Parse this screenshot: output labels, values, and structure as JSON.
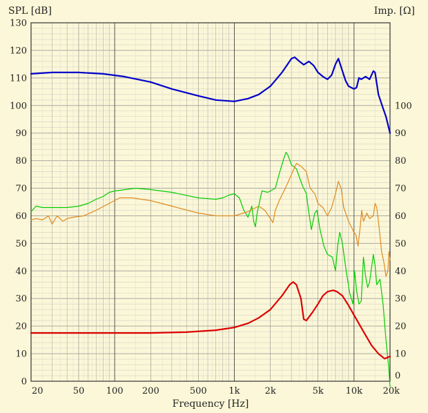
{
  "chart_data": {
    "type": "line",
    "xlabel": "Frequency [Hz]",
    "ylabel_left": "SPL [dB]",
    "ylabel_right": "Imp. [Ω]",
    "x_scale": "log",
    "xlim": [
      20,
      20000
    ],
    "ylim_left": [
      0,
      130
    ],
    "ylim_right": [
      0,
      130
    ],
    "grid": true,
    "x_ticks": [
      {
        "value": 20,
        "label": "20"
      },
      {
        "value": 50,
        "label": "50"
      },
      {
        "value": 100,
        "label": "100"
      },
      {
        "value": 200,
        "label": "200"
      },
      {
        "value": 500,
        "label": "500"
      },
      {
        "value": 1000,
        "label": "1k"
      },
      {
        "value": 2000,
        "label": "2k"
      },
      {
        "value": 5000,
        "label": "5k"
      },
      {
        "value": 10000,
        "label": "10k"
      },
      {
        "value": 20000,
        "label": "20k"
      }
    ],
    "y_ticks_left": [
      "0",
      "10",
      "20",
      "30",
      "40",
      "50",
      "60",
      "70",
      "80",
      "90",
      "100",
      "110",
      "120",
      "130"
    ],
    "y_ticks_right": [
      {
        "value": 0,
        "label": "0"
      },
      {
        "value": 10,
        "label": "10"
      },
      {
        "value": 20,
        "label": "20"
      },
      {
        "value": 30,
        "label": "30"
      },
      {
        "value": 40,
        "label": "40"
      },
      {
        "value": 50,
        "label": "50"
      },
      {
        "value": 60,
        "label": "60"
      },
      {
        "value": 70,
        "label": "70"
      },
      {
        "value": 80,
        "label": "80"
      },
      {
        "value": 90,
        "label": "90"
      },
      {
        "value": 100,
        "label": "100"
      }
    ],
    "series": [
      {
        "color": "#0000c8",
        "width": 2.2,
        "points": [
          [
            20,
            111.5
          ],
          [
            30,
            112
          ],
          [
            50,
            112
          ],
          [
            80,
            111.5
          ],
          [
            120,
            110.5
          ],
          [
            200,
            108.5
          ],
          [
            300,
            106
          ],
          [
            500,
            103.5
          ],
          [
            700,
            102
          ],
          [
            1000,
            101.5
          ],
          [
            1300,
            102.5
          ],
          [
            1600,
            104
          ],
          [
            2000,
            107
          ],
          [
            2500,
            112
          ],
          [
            3000,
            117
          ],
          [
            3200,
            117.5
          ],
          [
            3500,
            116
          ],
          [
            3800,
            114.8
          ],
          [
            4200,
            116
          ],
          [
            4600,
            114.5
          ],
          [
            5000,
            112
          ],
          [
            5500,
            110.5
          ],
          [
            6000,
            109.5
          ],
          [
            6500,
            111
          ],
          [
            7000,
            115
          ],
          [
            7400,
            117
          ],
          [
            7800,
            114
          ],
          [
            8500,
            109
          ],
          [
            9000,
            107
          ],
          [
            10000,
            106
          ],
          [
            10500,
            106.5
          ],
          [
            11000,
            110
          ],
          [
            11500,
            109.5
          ],
          [
            12500,
            110.5
          ],
          [
            13500,
            109.5
          ],
          [
            14500,
            112.5
          ],
          [
            15000,
            112
          ],
          [
            16000,
            104
          ],
          [
            17500,
            99
          ],
          [
            18500,
            96
          ],
          [
            20000,
            90
          ]
        ]
      },
      {
        "color": "#00cc00",
        "width": 1.2,
        "points": [
          [
            20,
            61.5
          ],
          [
            22,
            63.5
          ],
          [
            25,
            63
          ],
          [
            30,
            63
          ],
          [
            40,
            63
          ],
          [
            50,
            63.5
          ],
          [
            60,
            64.5
          ],
          [
            70,
            66
          ],
          [
            80,
            67
          ],
          [
            90,
            68.5
          ],
          [
            100,
            69
          ],
          [
            150,
            70
          ],
          [
            200,
            69.5
          ],
          [
            300,
            68.5
          ],
          [
            500,
            66.5
          ],
          [
            700,
            66
          ],
          [
            800,
            66.5
          ],
          [
            900,
            67.5
          ],
          [
            1000,
            68
          ],
          [
            1100,
            66.5
          ],
          [
            1200,
            62
          ],
          [
            1300,
            59.5
          ],
          [
            1400,
            63.5
          ],
          [
            1450,
            58
          ],
          [
            1500,
            56
          ],
          [
            1550,
            61
          ],
          [
            1700,
            69
          ],
          [
            1900,
            68.5
          ],
          [
            2200,
            70
          ],
          [
            2400,
            76
          ],
          [
            2600,
            81
          ],
          [
            2700,
            83
          ],
          [
            2800,
            82
          ],
          [
            3000,
            78.5
          ],
          [
            3300,
            77
          ],
          [
            3700,
            71
          ],
          [
            4000,
            68
          ],
          [
            4200,
            61
          ],
          [
            4400,
            55
          ],
          [
            4700,
            61
          ],
          [
            4900,
            62
          ],
          [
            5200,
            55
          ],
          [
            5600,
            49
          ],
          [
            6000,
            46
          ],
          [
            6600,
            45
          ],
          [
            7000,
            40
          ],
          [
            7300,
            49
          ],
          [
            7600,
            54
          ],
          [
            8000,
            50
          ],
          [
            8600,
            40
          ],
          [
            9200,
            32
          ],
          [
            9800,
            28
          ],
          [
            10100,
            40
          ],
          [
            10500,
            33
          ],
          [
            11000,
            28
          ],
          [
            11500,
            29
          ],
          [
            12000,
            45
          ],
          [
            12500,
            38
          ],
          [
            13000,
            34
          ],
          [
            13500,
            36
          ],
          [
            14500,
            46
          ],
          [
            15000,
            42
          ],
          [
            15500,
            35
          ],
          [
            16500,
            37
          ],
          [
            17500,
            28
          ],
          [
            18500,
            15
          ],
          [
            19500,
            5
          ],
          [
            20000,
            -2
          ]
        ]
      },
      {
        "color": "#e08a1e",
        "width": 1.2,
        "points": [
          [
            20,
            58.5
          ],
          [
            22,
            59
          ],
          [
            25,
            58.5
          ],
          [
            28,
            60
          ],
          [
            30,
            57
          ],
          [
            33,
            60
          ],
          [
            37,
            58
          ],
          [
            40,
            59
          ],
          [
            45,
            59.5
          ],
          [
            55,
            60
          ],
          [
            70,
            62
          ],
          [
            90,
            64.5
          ],
          [
            110,
            66.5
          ],
          [
            140,
            66.5
          ],
          [
            200,
            65.5
          ],
          [
            300,
            63.5
          ],
          [
            500,
            61
          ],
          [
            700,
            60
          ],
          [
            1000,
            60
          ],
          [
            1300,
            61.5
          ],
          [
            1600,
            63.5
          ],
          [
            1800,
            62
          ],
          [
            2000,
            59
          ],
          [
            2100,
            57.5
          ],
          [
            2200,
            62
          ],
          [
            2400,
            66
          ],
          [
            2600,
            69
          ],
          [
            2800,
            72
          ],
          [
            3000,
            75
          ],
          [
            3300,
            79
          ],
          [
            3600,
            78
          ],
          [
            4000,
            76
          ],
          [
            4300,
            70
          ],
          [
            4700,
            68
          ],
          [
            5000,
            64.5
          ],
          [
            5500,
            63
          ],
          [
            6000,
            60
          ],
          [
            6500,
            63
          ],
          [
            7000,
            68
          ],
          [
            7400,
            72.5
          ],
          [
            7800,
            70
          ],
          [
            8200,
            63
          ],
          [
            9000,
            58
          ],
          [
            10000,
            54
          ],
          [
            10400,
            53
          ],
          [
            10800,
            49
          ],
          [
            11200,
            55
          ],
          [
            11600,
            62
          ],
          [
            12000,
            58
          ],
          [
            12800,
            61
          ],
          [
            13500,
            59
          ],
          [
            14500,
            60
          ],
          [
            15000,
            64.5
          ],
          [
            15500,
            63
          ],
          [
            16200,
            56
          ],
          [
            17000,
            47
          ],
          [
            17800,
            43
          ],
          [
            18500,
            38
          ],
          [
            19200,
            40
          ],
          [
            19600,
            47
          ],
          [
            20000,
            44
          ]
        ]
      },
      {
        "color": "#dd0000",
        "width": 2.2,
        "points": [
          [
            20,
            17.5
          ],
          [
            100,
            17.5
          ],
          [
            200,
            17.5
          ],
          [
            400,
            17.8
          ],
          [
            700,
            18.5
          ],
          [
            1000,
            19.5
          ],
          [
            1300,
            21
          ],
          [
            1600,
            23
          ],
          [
            2000,
            26
          ],
          [
            2500,
            31
          ],
          [
            2900,
            35
          ],
          [
            3100,
            36
          ],
          [
            3300,
            35
          ],
          [
            3600,
            30
          ],
          [
            3800,
            22.5
          ],
          [
            4000,
            22
          ],
          [
            4500,
            25
          ],
          [
            5000,
            28
          ],
          [
            5500,
            31
          ],
          [
            6000,
            32.5
          ],
          [
            6700,
            33
          ],
          [
            7200,
            32.5
          ],
          [
            8000,
            31
          ],
          [
            9000,
            27.5
          ],
          [
            10000,
            24
          ],
          [
            12000,
            18
          ],
          [
            14000,
            13
          ],
          [
            16000,
            10
          ],
          [
            18000,
            8.2
          ],
          [
            20000,
            9
          ]
        ]
      }
    ]
  }
}
